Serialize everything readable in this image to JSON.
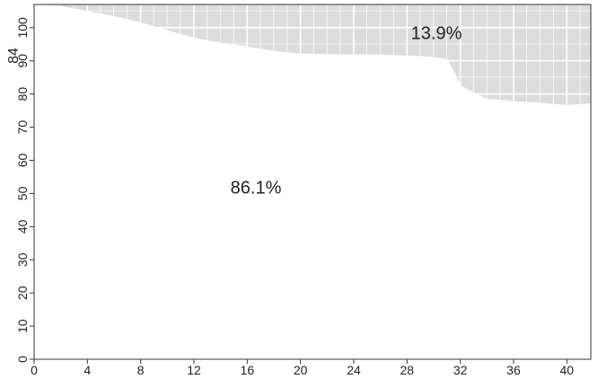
{
  "chart_data": {
    "type": "area",
    "ylabel": "84",
    "x": [
      0,
      2,
      4,
      6,
      8,
      10,
      12,
      14,
      16,
      18,
      20,
      22,
      24,
      26,
      28,
      30,
      31,
      31.5,
      32,
      33,
      34,
      35,
      36,
      38,
      40,
      41.8
    ],
    "series": [
      {
        "color": "#ffffff",
        "values": [
          107,
          106.6,
          105,
          103.5,
          101.6,
          99.2,
          97,
          95.5,
          94.3,
          93,
          92.2,
          92,
          91.9,
          91.9,
          91.6,
          91.2,
          90.5,
          87,
          82.7,
          80.5,
          78.6,
          78.3,
          77.8,
          77.4,
          76.7,
          77.2
        ]
      }
    ],
    "background_color": "#dcdcdc",
    "annotations": [
      "86.1%",
      "13.9%"
    ],
    "xlim": [
      0,
      41.8
    ],
    "ylim": [
      0,
      107
    ],
    "xticks": [
      0,
      4,
      8,
      12,
      16,
      20,
      24,
      28,
      32,
      36,
      40
    ],
    "yticks": [
      0,
      10,
      20,
      30,
      40,
      50,
      60,
      70,
      80,
      90,
      100
    ],
    "grid": true
  }
}
